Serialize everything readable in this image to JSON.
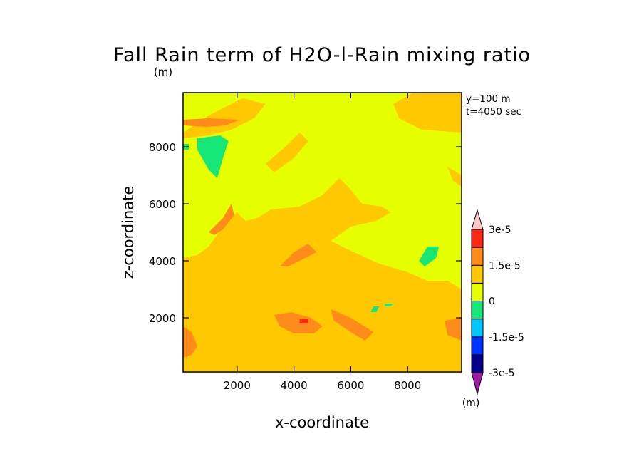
{
  "chart_data": {
    "type": "heatmap",
    "title": "Fall Rain term of H2O-l-Rain mixing ratio",
    "y_unit_label": "(m)",
    "xlabel": "x-coordinate",
    "ylabel": "z-coordinate",
    "xlim": [
      100,
      9900
    ],
    "ylim": [
      100,
      9900
    ],
    "x_ticks": [
      2000,
      4000,
      6000,
      8000
    ],
    "y_ticks": [
      2000,
      4000,
      6000,
      8000
    ],
    "annotations": [
      "y=100 m",
      "t=4050 sec"
    ],
    "colorbar": {
      "unit_label": "(m)",
      "levels": [
        -3e-05,
        -2.25e-05,
        -1.5e-05,
        -7.5e-06,
        0,
        7.5e-06,
        1.5e-05,
        2.25e-05,
        3e-05
      ],
      "colors": [
        "#a01aa6",
        "#00008c",
        "#0032ff",
        "#00c8ff",
        "#14e678",
        "#e6ff00",
        "#ffc800",
        "#ff8c1a",
        "#ff2814",
        "#f07878",
        "#ffc8c8"
      ],
      "tick_values": [
        3e-05,
        1.5e-05,
        0,
        -1.5e-05,
        -3e-05
      ],
      "tick_labels": [
        "3e-5",
        "1.5e-5",
        "0",
        "-1.5e-5",
        "-3e-5"
      ]
    },
    "background_level_color": "#e6ff00",
    "regions": [
      {
        "level": "0 to 7.5e-6",
        "color": "#ffc800",
        "points": [
          [
            100,
            2000
          ],
          [
            9900,
            2000
          ],
          [
            9900,
            100
          ],
          [
            100,
            100
          ]
        ]
      },
      {
        "level": "0 to 7.5e-6",
        "color": "#ffc800",
        "points": [
          [
            100,
            4100
          ],
          [
            600,
            4200
          ],
          [
            1000,
            4500
          ],
          [
            1500,
            5200
          ],
          [
            2000,
            5700
          ],
          [
            2300,
            5400
          ],
          [
            2700,
            5500
          ],
          [
            3200,
            5800
          ],
          [
            4200,
            5900
          ],
          [
            5000,
            6300
          ],
          [
            5600,
            6900
          ],
          [
            6000,
            6500
          ],
          [
            6400,
            6000
          ],
          [
            7100,
            5900
          ],
          [
            7400,
            5700
          ],
          [
            6900,
            5400
          ],
          [
            6000,
            5200
          ],
          [
            5300,
            4700
          ],
          [
            5900,
            4400
          ],
          [
            7000,
            3900
          ],
          [
            8000,
            3600
          ],
          [
            8700,
            3300
          ],
          [
            9400,
            3300
          ],
          [
            9900,
            3000
          ],
          [
            9900,
            2000
          ],
          [
            100,
            2000
          ]
        ]
      },
      {
        "level": "0 to 7.5e-6",
        "color": "#ffc800",
        "points": [
          [
            100,
            8500
          ],
          [
            1000,
            9100
          ],
          [
            2200,
            9700
          ],
          [
            3000,
            9500
          ],
          [
            2600,
            9000
          ],
          [
            1800,
            8600
          ],
          [
            1000,
            8400
          ],
          [
            100,
            8300
          ]
        ]
      },
      {
        "level": "0 to 7.5e-6",
        "color": "#ffc800",
        "points": [
          [
            7500,
            9500
          ],
          [
            8200,
            9900
          ],
          [
            9900,
            9900
          ],
          [
            9900,
            8500
          ],
          [
            8500,
            8600
          ],
          [
            7700,
            9000
          ]
        ]
      },
      {
        "level": "0 to 7.5e-6",
        "color": "#ffc800",
        "points": [
          [
            3000,
            7400
          ],
          [
            3700,
            8000
          ],
          [
            4200,
            8500
          ],
          [
            4500,
            8200
          ],
          [
            4000,
            7600
          ],
          [
            3300,
            7100
          ]
        ]
      },
      {
        "level": "0 to 7.5e-6",
        "color": "#ffc800",
        "points": [
          [
            9400,
            7300
          ],
          [
            9900,
            7000
          ],
          [
            9900,
            6600
          ],
          [
            9600,
            6800
          ]
        ]
      },
      {
        "level": "7.5e-6 to 1.5e-5",
        "color": "#ff8c1a",
        "points": [
          [
            100,
            8950
          ],
          [
            1000,
            9000
          ],
          [
            2100,
            8950
          ],
          [
            1600,
            8750
          ],
          [
            900,
            8700
          ],
          [
            100,
            8750
          ]
        ]
      },
      {
        "level": "7.5e-6 to 1.5e-5",
        "color": "#ff8c1a",
        "points": [
          [
            1000,
            5000
          ],
          [
            1500,
            5500
          ],
          [
            1800,
            6000
          ],
          [
            1900,
            5600
          ],
          [
            1500,
            5100
          ],
          [
            1200,
            4900
          ]
        ]
      },
      {
        "level": "7.5e-6 to 1.5e-5",
        "color": "#ff8c1a",
        "points": [
          [
            3500,
            3800
          ],
          [
            4000,
            4300
          ],
          [
            4500,
            4600
          ],
          [
            4800,
            4300
          ],
          [
            4200,
            4000
          ],
          [
            3800,
            3800
          ]
        ]
      },
      {
        "level": "7.5e-6 to 1.5e-5",
        "color": "#ff8c1a",
        "points": [
          [
            3300,
            2100
          ],
          [
            3900,
            2200
          ],
          [
            4600,
            2000
          ],
          [
            5000,
            1700
          ],
          [
            4700,
            1450
          ],
          [
            4000,
            1450
          ],
          [
            3500,
            1700
          ]
        ]
      },
      {
        "level": "7.5e-6 to 1.5e-5",
        "color": "#ff8c1a",
        "points": [
          [
            5300,
            2300
          ],
          [
            6000,
            2000
          ],
          [
            6800,
            1500
          ],
          [
            6500,
            1200
          ],
          [
            6000,
            1500
          ],
          [
            5400,
            1900
          ]
        ]
      },
      {
        "level": "7.5e-6 to 1.5e-5",
        "color": "#ff8c1a",
        "points": [
          [
            100,
            1700
          ],
          [
            400,
            1500
          ],
          [
            600,
            1000
          ],
          [
            400,
            700
          ],
          [
            100,
            600
          ]
        ]
      },
      {
        "level": "7.5e-6 to 1.5e-5",
        "color": "#ff8c1a",
        "points": [
          [
            9300,
            1900
          ],
          [
            9900,
            2000
          ],
          [
            9900,
            1200
          ],
          [
            9400,
            1400
          ]
        ]
      },
      {
        "level": "-7.5e-6 to 0",
        "color": "#14e678",
        "points": [
          [
            600,
            8300
          ],
          [
            1400,
            8400
          ],
          [
            1700,
            8200
          ],
          [
            1500,
            7600
          ],
          [
            1300,
            6900
          ],
          [
            1000,
            7200
          ],
          [
            600,
            7900
          ]
        ]
      },
      {
        "level": "-7.5e-6 to 0",
        "color": "#14e678",
        "points": [
          [
            8400,
            4000
          ],
          [
            8700,
            4500
          ],
          [
            9100,
            4500
          ],
          [
            9000,
            4100
          ],
          [
            8600,
            3800
          ]
        ]
      },
      {
        "level": "-7.5e-6 to 0",
        "color": "#14e678",
        "points": [
          [
            6800,
            2400
          ],
          [
            7000,
            2400
          ],
          [
            6900,
            2200
          ],
          [
            6700,
            2200
          ]
        ]
      },
      {
        "level": "-7.5e-6 to 0",
        "color": "#14e678",
        "points": [
          [
            7200,
            2500
          ],
          [
            7500,
            2500
          ],
          [
            7400,
            2400
          ],
          [
            7200,
            2400
          ]
        ]
      },
      {
        "level": "-7.5e-6 to 0",
        "color": "#14e678",
        "points": [
          [
            100,
            8100
          ],
          [
            300,
            8100
          ],
          [
            300,
            7900
          ],
          [
            100,
            7900
          ]
        ]
      },
      {
        "level": "1.5e-5 to 2.25e-5",
        "color": "#ff2814",
        "points": [
          [
            4200,
            1950
          ],
          [
            4500,
            1950
          ],
          [
            4500,
            1800
          ],
          [
            4200,
            1800
          ]
        ]
      }
    ]
  }
}
